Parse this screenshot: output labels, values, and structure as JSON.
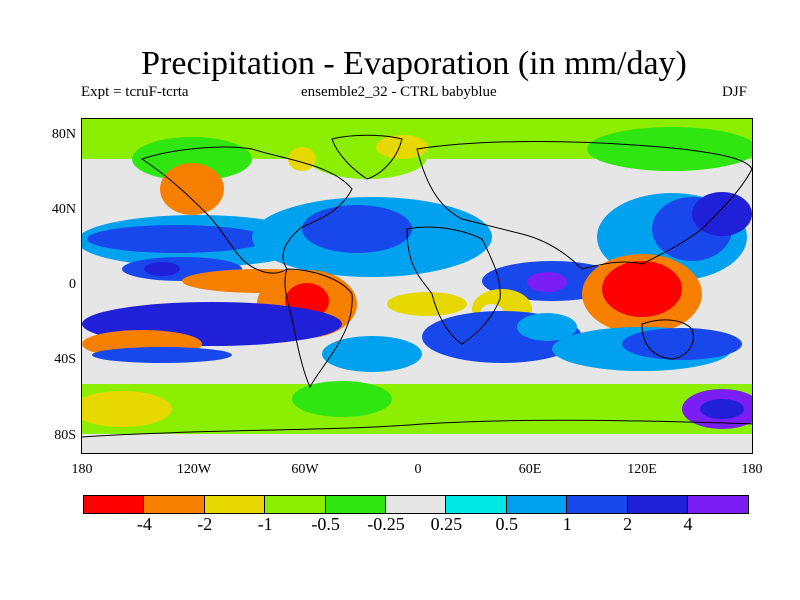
{
  "title": "Precipitation - Evaporation (in mm/day)",
  "subtitle_left": "Expt = tcruF-tcrta",
  "subtitle_center": "ensemble2_32 - CTRL babyblue",
  "subtitle_right": "DJF",
  "lat_ticks": [
    "80N",
    "40N",
    "0",
    "40S",
    "80S"
  ],
  "lon_ticks": [
    "180",
    "120W",
    "60W",
    "0",
    "60E",
    "120E",
    "180"
  ],
  "colorbar": {
    "colors": [
      "#ff0000",
      "#f77f00",
      "#e6d800",
      "#8cee00",
      "#2fe610",
      "#e6e6e6",
      "#00e8e6",
      "#00a2f0",
      "#1848ec",
      "#2020d8",
      "#7a1ef4"
    ],
    "labels": [
      "-4",
      "-2",
      "-1",
      "-0.5",
      "-0.25",
      "0.25",
      "0.5",
      "1",
      "2",
      "4"
    ]
  },
  "map_colors": {
    "land_outline": "#000000",
    "background": "#e6e6e6"
  }
}
